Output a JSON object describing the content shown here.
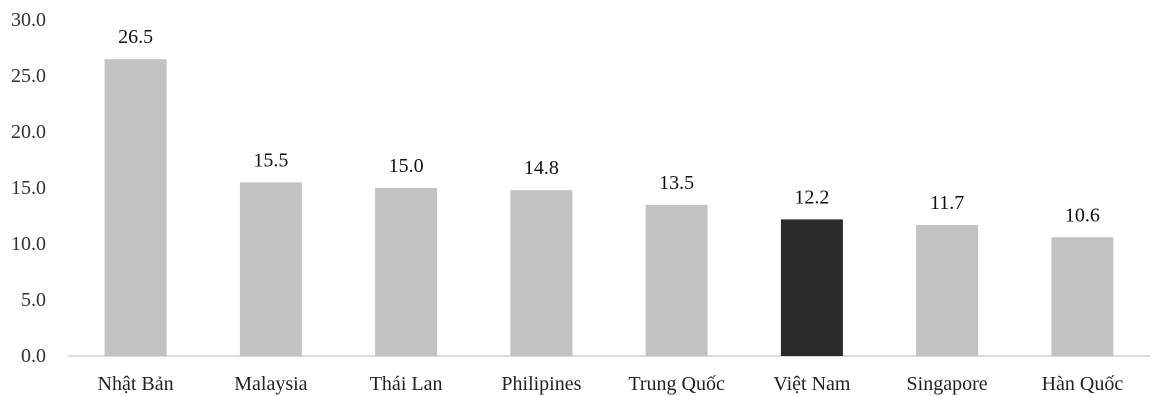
{
  "chart_data": {
    "type": "bar",
    "categories": [
      "Nhật Bản",
      "Malaysia",
      "Thái Lan",
      "Philipines",
      "Trung Quốc",
      "Việt Nam",
      "Singapore",
      "Hàn Quốc"
    ],
    "values": [
      26.5,
      15.5,
      15.0,
      14.8,
      13.5,
      12.2,
      11.7,
      10.6
    ],
    "value_labels": [
      "26.5",
      "15.5",
      "15.0",
      "14.8",
      "13.5",
      "12.2",
      "11.7",
      "10.6"
    ],
    "yticks": [
      "0.0",
      "5.0",
      "10.0",
      "15.0",
      "20.0",
      "25.0",
      "30.0"
    ],
    "ylim": [
      0,
      30
    ],
    "grid": false,
    "legend": "none",
    "colors": {
      "bar": "#c2c2c2",
      "highlight": "#2b2b2b",
      "highlight_category": "Việt Nam",
      "axis": "#cfcfcf"
    }
  }
}
